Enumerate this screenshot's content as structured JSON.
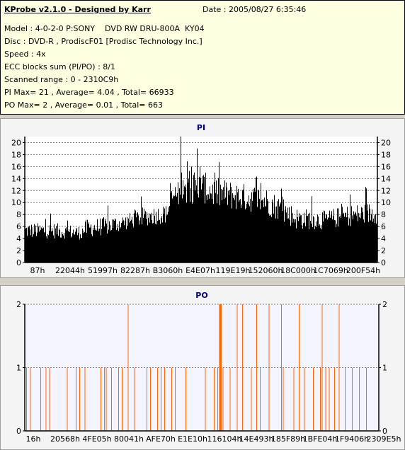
{
  "info": {
    "title": "KProbe v2.1.0 - Designed by Karr",
    "date": "Date : 2005/08/27 6:35:46",
    "model": "Model : 4-0-2-0 P:SONY    DVD RW DRU-800A  KY04",
    "disc": "Disc : DVD-R , ProdiscF01 [Prodisc Technology Inc.]",
    "speed": "Speed : 4x",
    "ecc": "ECC blocks sum (PI/PO) : 8/1",
    "range": "Scanned range : 0 - 2310C9h",
    "pi_summary": "PI Max= 21 , Average= 4.04 , Total= 66933",
    "po_summary": "PO Max= 2 , Average= 0.01 , Total= 663"
  },
  "colors": {
    "pi_bar": "#000000",
    "po_bar": "#ff6600",
    "title": "#000080",
    "grid": "#808080"
  },
  "chart_data": [
    {
      "type": "bar",
      "title": "PI",
      "ylim": [
        0,
        21
      ],
      "yticks": [
        0,
        2,
        4,
        6,
        8,
        10,
        12,
        14,
        16,
        18,
        20
      ],
      "xticks": [
        "87h",
        "22044h",
        "51997h",
        "82287h",
        "B3060h",
        "E4E07h",
        "119E19h",
        "152060h",
        "18C000h",
        "1C7069h",
        "200F54h"
      ],
      "grid": true,
      "series_profile": [
        [
          0.0,
          4,
          6.5
        ],
        [
          0.08,
          4,
          6.5
        ],
        [
          0.16,
          3.8,
          6
        ],
        [
          0.17,
          4.2,
          7
        ],
        [
          0.23,
          4.5,
          7.5
        ],
        [
          0.29,
          5.5,
          8
        ],
        [
          0.33,
          6,
          9
        ],
        [
          0.4,
          6.5,
          9.5
        ],
        [
          0.42,
          9,
          13
        ],
        [
          0.5,
          10,
          15
        ],
        [
          0.54,
          9,
          14
        ],
        [
          0.62,
          8.5,
          13
        ],
        [
          0.68,
          8,
          12.5
        ],
        [
          0.72,
          7,
          11
        ],
        [
          0.77,
          5.5,
          9
        ],
        [
          0.85,
          5.5,
          8.5
        ],
        [
          0.92,
          6,
          9.5
        ],
        [
          1.0,
          6.5,
          10
        ]
      ],
      "peak_values": [
        21,
        20,
        19,
        17,
        16,
        15,
        14
      ]
    },
    {
      "type": "bar",
      "title": "PO",
      "ylim": [
        0,
        2
      ],
      "yticks": [
        0,
        1,
        2
      ],
      "xticks": [
        "16h",
        "20568h",
        "4FE05h",
        "80041h",
        "AFE70h",
        "E1E10h",
        "116104h",
        "14E493h",
        "185F89h",
        "1BFE04h",
        "1F9406h",
        "2309E5h"
      ],
      "grid": true,
      "spikes_value_1_at": [
        0.005,
        0.016,
        0.045,
        0.06,
        0.07,
        0.12,
        0.145,
        0.155,
        0.17,
        0.215,
        0.225,
        0.23,
        0.245,
        0.265,
        0.275,
        0.31,
        0.345,
        0.355,
        0.375,
        0.385,
        0.395,
        0.415,
        0.425,
        0.455,
        0.51,
        0.535,
        0.545,
        0.56,
        0.58,
        0.64,
        0.665,
        0.69,
        0.73,
        0.76,
        0.79,
        0.815,
        0.835,
        0.85,
        0.86,
        0.875,
        0.905,
        0.925,
        0.945,
        0.965
      ],
      "spikes_value_2_at": [
        0.292,
        0.6,
        0.615,
        0.655,
        0.69,
        0.725,
        0.775,
        0.84,
        0.888
      ],
      "dense_band_value_2": [
        0.549,
        0.556
      ]
    }
  ]
}
